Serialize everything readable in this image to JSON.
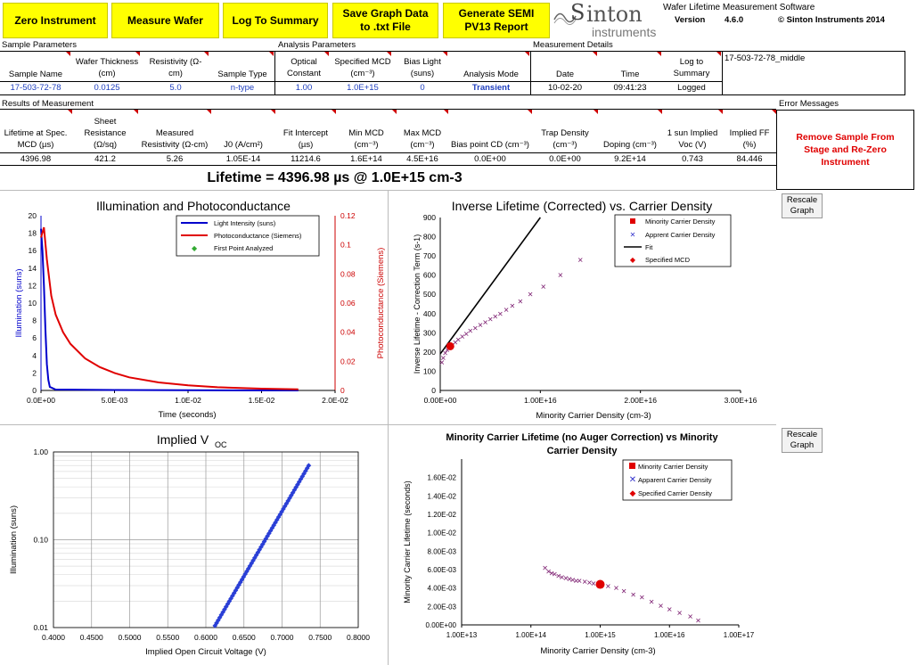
{
  "toolbar": {
    "zero_instrument": "Zero Instrument",
    "measure_wafer": "Measure Wafer",
    "log_to_summary": "Log To Summary",
    "save_graph_data": "Save Graph Data to .txt File",
    "generate_semi": "Generate SEMI PV13 Report"
  },
  "brand": {
    "logo_s": "S",
    "logo_inton": "inton",
    "logo_instruments": "instruments",
    "software_name": "Wafer Lifetime Measurement Software",
    "version_label": "Version",
    "version_value": "4.6.0",
    "copyright": "© Sinton Instruments 2014"
  },
  "sample_parameters": {
    "title": "Sample Parameters",
    "headers": [
      "Sample Name",
      "Wafer Thickness (cm)",
      "Resistivity (Ω-cm)",
      "Sample Type"
    ],
    "values": [
      "17-503-72-78",
      "0.0125",
      "5.0",
      "n-type"
    ]
  },
  "analysis_parameters": {
    "title": "Analysis Parameters",
    "headers": [
      "Optical Constant",
      "Specified MCD (cm⁻³)",
      "Bias Light (suns)",
      "Analysis Mode"
    ],
    "values": [
      "1.00",
      "1.0E+15",
      "0",
      "Transient"
    ]
  },
  "measurement_details": {
    "title": "Measurement Details",
    "headers": [
      "Date",
      "Time",
      "Log to Summary"
    ],
    "values": [
      "10-02-20",
      "09:41:23",
      "Logged"
    ],
    "file_name": "17-503-72-78_middle"
  },
  "results": {
    "title": "Results of Measurement",
    "headers": [
      "Lifetime at Spec. MCD (µs)",
      "Sheet Resistance (Ω/sq)",
      "Measured Resistivity (Ω-cm)",
      "J0 (A/cm²)",
      "Fit Intercept (µs)",
      "Min MCD (cm⁻³)",
      "Max MCD (cm⁻³)",
      "Bias point CD (cm⁻³)",
      "Trap Density (cm⁻³)",
      "Doping (cm⁻³)",
      "1 sun Implied Voc (V)",
      "Implied FF (%)"
    ],
    "values": [
      "4396.98",
      "421.2",
      "5.26",
      "1.05E-14",
      "11214.6",
      "1.6E+14",
      "4.5E+16",
      "0.0E+00",
      "0.0E+00",
      "9.2E+14",
      "0.743",
      "84.446"
    ]
  },
  "errors": {
    "title": "Error Messages",
    "message": "Remove Sample From Stage and Re-Zero Instrument"
  },
  "lifetime_banner": "Lifetime = 4396.98 µs @ 1.0E+15 cm-3",
  "rescale_label": "Rescale Graph",
  "chart_data": [
    {
      "type": "line",
      "title": "Illumination and Photoconductance",
      "xlabel": "Time (seconds)",
      "ylabel": "Illumination (suns)",
      "y2label": "Photoconductance (Siemens)",
      "xlim": [
        0,
        0.02
      ],
      "ylim": [
        0,
        20
      ],
      "y2lim": [
        0,
        0.12
      ],
      "xticks": [
        "0.0E+00",
        "5.0E-03",
        "1.0E-02",
        "1.5E-02",
        "2.0E-02"
      ],
      "yticks": [
        "0",
        "2",
        "4",
        "6",
        "8",
        "10",
        "12",
        "14",
        "16",
        "18",
        "20"
      ],
      "y2ticks": [
        "0",
        "0.02",
        "0.04",
        "0.06",
        "0.08",
        "0.1",
        "0.12"
      ],
      "legend": [
        "Light Intensity (suns)",
        "Photoconductance (Siemens)",
        "First Point Analyzed"
      ],
      "colors": {
        "light": "#0000cc",
        "pc": "#e00000",
        "first": "#33aa33"
      },
      "series": [
        {
          "name": "Light Intensity (suns)",
          "axis": "left",
          "x": [
            0,
            0.0001,
            0.0002,
            0.0003,
            0.0004,
            0.0005,
            0.0006,
            0.001,
            0.005,
            0.01,
            0.0175
          ],
          "y": [
            18.5,
            16,
            12,
            7,
            3,
            1.2,
            0.4,
            0.1,
            0.05,
            0.02,
            0
          ]
        },
        {
          "name": "Photoconductance (Siemens)",
          "axis": "right",
          "x": [
            0,
            0.0002,
            0.0004,
            0.0007,
            0.001,
            0.0015,
            0.002,
            0.003,
            0.004,
            0.005,
            0.006,
            0.008,
            0.01,
            0.012,
            0.015,
            0.0175
          ],
          "y": [
            0.105,
            0.112,
            0.09,
            0.065,
            0.052,
            0.04,
            0.032,
            0.022,
            0.016,
            0.012,
            0.009,
            0.0055,
            0.0035,
            0.0022,
            0.0012,
            0.0008
          ]
        }
      ]
    },
    {
      "type": "scatter",
      "title": "Inverse Lifetime (Corrected) vs. Carrier Density",
      "xlabel": "Minority Carrier Density (cm-3)",
      "ylabel": "Inverse Lifetime - Correction Term (s-1)",
      "xlim": [
        0,
        3e+16
      ],
      "ylim": [
        0,
        900
      ],
      "xticks": [
        "0.00E+00",
        "1.00E+16",
        "2.00E+16",
        "3.00E+16"
      ],
      "yticks": [
        "0",
        "100",
        "200",
        "300",
        "400",
        "500",
        "600",
        "700",
        "800",
        "900"
      ],
      "legend": [
        "Minority Carrier Density",
        "Apprent Carrier Density",
        "Fit",
        "Specified MCD"
      ],
      "fit": {
        "x": [
          0,
          1e+16
        ],
        "y": [
          190,
          900
        ]
      },
      "specified": {
        "x": 1000000000000000.0,
        "y": 230
      },
      "points": {
        "x": [
          160000000000000.0,
          300000000000000.0,
          500000000000000.0,
          700000000000000.0,
          900000000000000.0,
          1200000000000000.0,
          1500000000000000.0,
          1800000000000000.0,
          2200000000000000.0,
          2600000000000000.0,
          3000000000000000.0,
          3500000000000000.0,
          4000000000000000.0,
          4500000000000000.0,
          5000000000000000.0,
          5500000000000000.0,
          6000000000000000.0,
          6600000000000000.0,
          7200000000000000.0,
          8000000000000000.0,
          9000000000000000.0,
          1.03e+16,
          1.2e+16,
          1.4e+16
        ],
        "y": [
          145,
          170,
          195,
          210,
          220,
          235,
          250,
          265,
          280,
          295,
          310,
          325,
          340,
          355,
          370,
          385,
          400,
          420,
          440,
          465,
          500,
          540,
          600,
          680
        ]
      }
    },
    {
      "type": "scatter",
      "title": "Implied V_OC",
      "xlabel": "Implied Open Circuit Voltage (V)",
      "ylabel": "Illumination (suns)",
      "xlim": [
        0.4,
        0.8
      ],
      "ylim": [
        0.01,
        1
      ],
      "yscale": "log",
      "xticks": [
        "0.4000",
        "0.4500",
        "0.5000",
        "0.5500",
        "0.6000",
        "0.6500",
        "0.7000",
        "0.7500",
        "0.8000"
      ],
      "yticks": [
        "0.01",
        "0.10",
        "1.00"
      ],
      "points": {
        "x_start": 0.612,
        "x_end": 0.735,
        "y_start": 0.0105,
        "y_end": 0.7
      }
    },
    {
      "type": "scatter",
      "title": "Minority Carrier Lifetime (no Auger Correction) vs Minority Carrier Density",
      "xlabel": "Minority Carrier Density (cm-3)",
      "ylabel": "Minority Carrier Lifetime (seconds)",
      "xlim": [
        10000000000000.0,
        1e+17
      ],
      "xscale": "log",
      "ylim": [
        0,
        0.018
      ],
      "xticks": [
        "1.00E+13",
        "1.00E+14",
        "1.00E+15",
        "1.00E+16",
        "1.00E+17"
      ],
      "yticks": [
        "0.00E+00",
        "2.00E-03",
        "4.00E-03",
        "6.00E-03",
        "8.00E-03",
        "1.00E-02",
        "1.20E-02",
        "1.40E-02",
        "1.60E-02"
      ],
      "legend": [
        "Minority Carrier Density",
        "Apparent Carrier Density",
        "Specified Carrier Density"
      ],
      "specified": {
        "x": 1000000000000000.0,
        "y": 0.0044
      },
      "points": {
        "x": [
          160000000000000.0,
          180000000000000.0,
          200000000000000.0,
          220000000000000.0,
          250000000000000.0,
          280000000000000.0,
          320000000000000.0,
          360000000000000.0,
          400000000000000.0,
          450000000000000.0,
          500000000000000.0,
          600000000000000.0,
          700000000000000.0,
          800000000000000.0,
          1000000000000000.0,
          1300000000000000.0,
          1700000000000000.0,
          2200000000000000.0,
          3000000000000000.0,
          4000000000000000.0,
          5500000000000000.0,
          7500000000000000.0,
          1e+16,
          1.4e+16,
          2e+16,
          2.6e+16
        ],
        "y": [
          0.0062,
          0.0058,
          0.0056,
          0.0055,
          0.0053,
          0.0052,
          0.0051,
          0.005,
          0.0049,
          0.0048,
          0.0048,
          0.0047,
          0.0046,
          0.0045,
          0.0044,
          0.0042,
          0.004,
          0.0037,
          0.0033,
          0.003,
          0.0025,
          0.0021,
          0.0017,
          0.0013,
          0.0009,
          0.0005
        ]
      }
    }
  ]
}
